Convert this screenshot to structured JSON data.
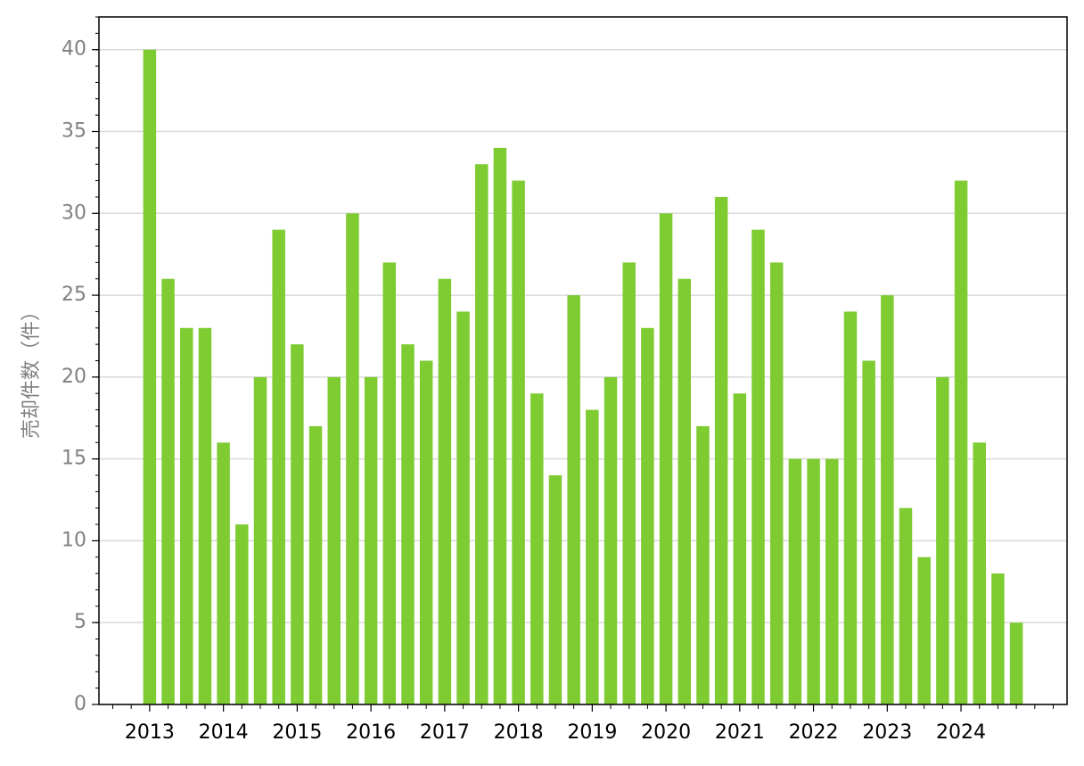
{
  "chart_data": {
    "type": "bar",
    "y_label": "売却件数（件）",
    "categories": [
      "2013",
      null,
      null,
      null,
      "2014",
      null,
      null,
      null,
      "2015",
      null,
      null,
      null,
      "2016",
      null,
      null,
      null,
      "2017",
      null,
      null,
      null,
      "2018",
      null,
      null,
      null,
      "2019",
      null,
      null,
      null,
      "2020",
      null,
      null,
      null,
      "2021",
      null,
      null,
      null,
      "2022",
      null,
      null,
      null,
      "2023",
      null,
      null,
      null,
      "2024",
      null,
      null,
      null
    ],
    "values": [
      40,
      26,
      23,
      23,
      16,
      11,
      20,
      29,
      22,
      17,
      20,
      30,
      20,
      27,
      22,
      21,
      26,
      24,
      33,
      34,
      32,
      19,
      14,
      25,
      18,
      20,
      27,
      23,
      30,
      26,
      17,
      31,
      19,
      29,
      27,
      15,
      15,
      15,
      24,
      21,
      25,
      12,
      9,
      20,
      32,
      16,
      8,
      5
    ],
    "color": "#7ecb32",
    "ylim": [
      0,
      42
    ],
    "yticks": [
      0,
      5,
      10,
      15,
      20,
      25,
      30,
      35,
      40
    ],
    "grid": true
  }
}
